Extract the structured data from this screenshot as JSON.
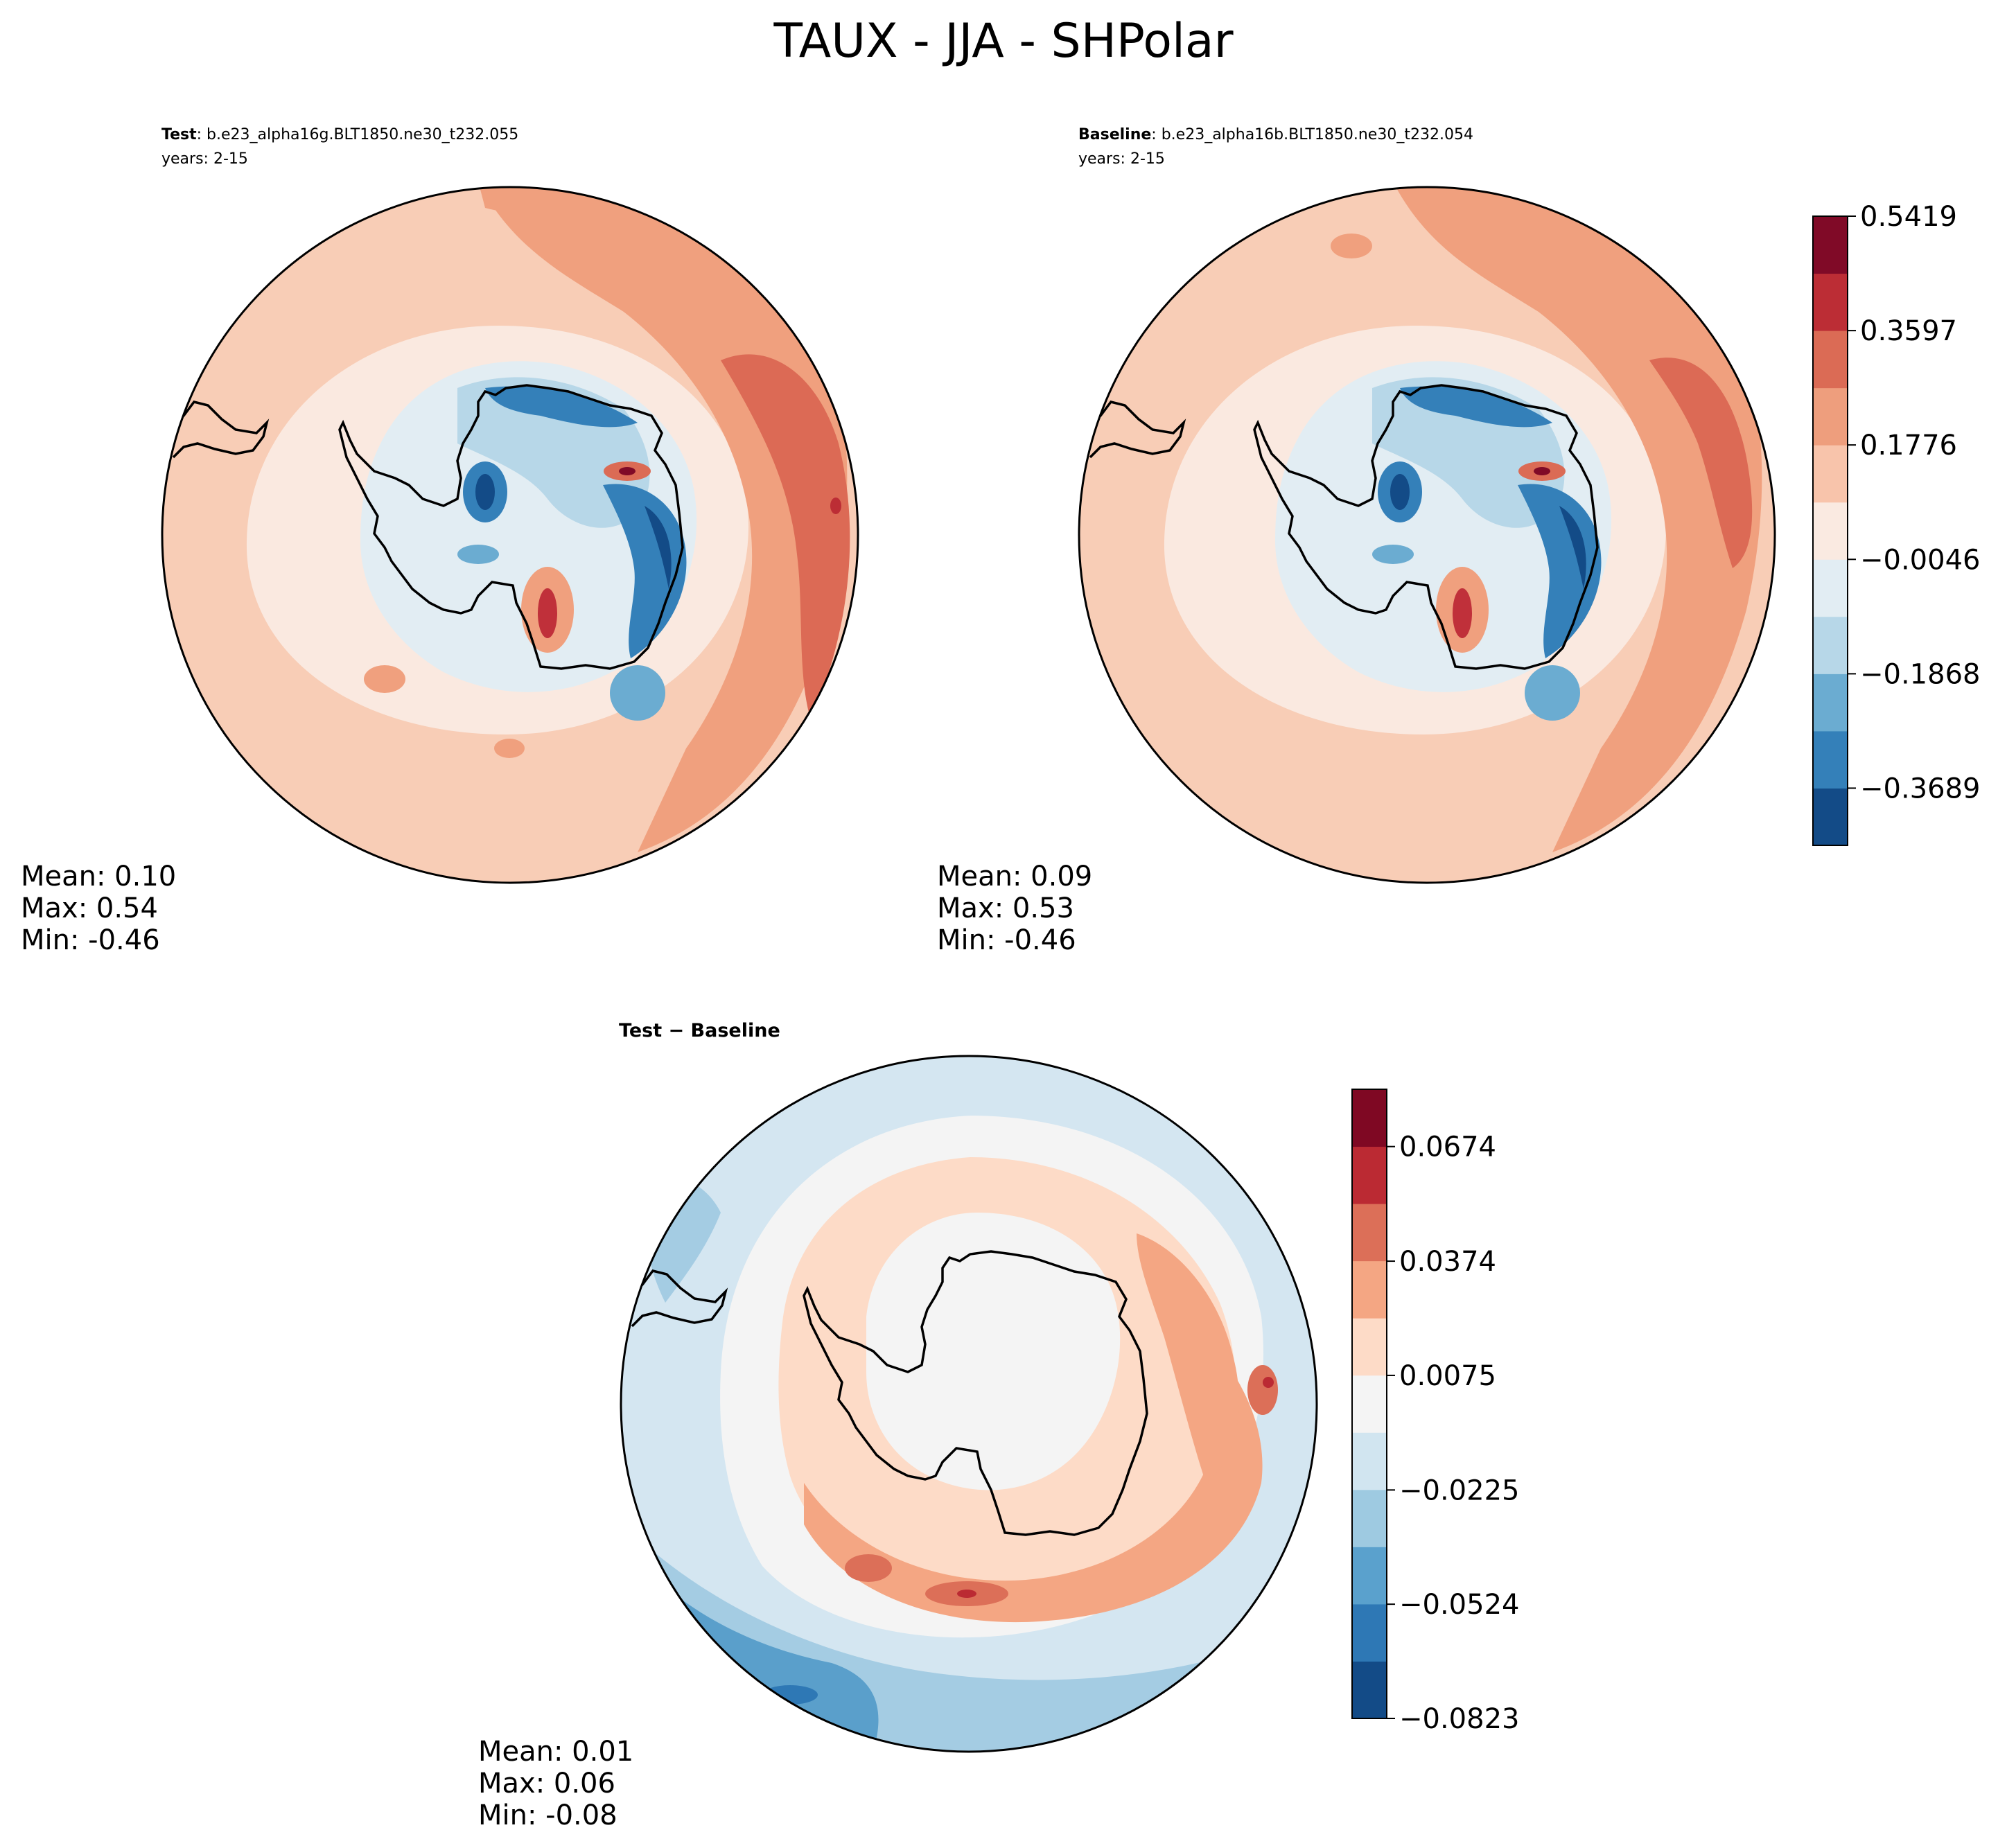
{
  "figure": {
    "title": "TAUX - JJA - SHPolar"
  },
  "chart_data": [
    {
      "type": "heatmap",
      "projection": "south-polar-stereographic",
      "panel": "test",
      "title_bold": "Test",
      "title_rest": ": b.e23_alpha16g.BLT1850.ne30_t232.055",
      "years": "years: 2-15",
      "stats": {
        "mean": "Mean:  0.10",
        "max": "Max:  0.54",
        "min": "Min: -0.46"
      },
      "color_levels": [
        -0.46,
        -0.3689,
        -0.2778,
        -0.1868,
        -0.0957,
        -0.0046,
        0.0865,
        0.1776,
        0.2686,
        0.3597,
        0.4508,
        0.5419
      ]
    },
    {
      "type": "heatmap",
      "projection": "south-polar-stereographic",
      "panel": "baseline",
      "title_bold": "Baseline",
      "title_rest": ": b.e23_alpha16b.BLT1850.ne30_t232.054",
      "years": "years: 2-15",
      "stats": {
        "mean": "Mean:  0.09",
        "max": "Max:  0.53",
        "min": "Min: -0.46"
      },
      "colorbar": {
        "ticks": [
          "0.5419",
          "0.3597",
          "0.1776",
          "−0.0046",
          "−0.1868",
          "−0.3689"
        ],
        "tick_values": [
          0.5419,
          0.3597,
          0.1776,
          -0.0046,
          -0.1868,
          -0.3689
        ],
        "range": [
          -0.46,
          0.5419
        ],
        "colors": [
          "#134b87",
          "#3480b9",
          "#6bacd1",
          "#b7d7e8",
          "#e2edf3",
          "#faeae1",
          "#f8c4ab",
          "#ee9e7d",
          "#db6b55",
          "#bc2d35",
          "#800a27"
        ]
      }
    },
    {
      "type": "heatmap",
      "projection": "south-polar-stereographic",
      "panel": "difference",
      "title": "Test − Baseline",
      "stats": {
        "mean": "Mean:  0.01",
        "max": "Max:  0.06",
        "min": "Min: -0.08"
      },
      "colorbar": {
        "ticks": [
          "0.0674",
          "0.0374",
          "0.0075",
          "−0.0225",
          "−0.0524",
          "−0.0823"
        ],
        "tick_values": [
          0.0674,
          0.0374,
          0.0075,
          -0.0225,
          -0.0524,
          -0.0823
        ],
        "range": [
          -0.0823,
          0.0824
        ],
        "colors": [
          "#134b87",
          "#2e78b5",
          "#5aa1cd",
          "#9ecae1",
          "#d1e5f0",
          "#f4f4f4",
          "#fddbc7",
          "#f4a683",
          "#dc6f58",
          "#bb2a33",
          "#7f0823"
        ]
      }
    }
  ],
  "palette": {
    "fill_light_pos": "#fae9e0",
    "fill_pos": "#f8cdb6",
    "fill_mid_pos": "#f0a07e",
    "fill_strong_pos": "#dc6a55",
    "fill_red": "#c0303a",
    "fill_light_neg": "#deebf3",
    "fill_neg": "#b6d5e8",
    "fill_mid_neg": "#6aaad0",
    "fill_strong_neg": "#3379b6",
    "fill_dark_neg": "#15508c",
    "diff_neutral": "#f4f4f4",
    "diff_light_pos": "#fce0d2",
    "diff_light_neg": "#d4e6f1",
    "diff_mid_neg": "#a4cce3",
    "diff_strong_neg": "#5a9fcb"
  }
}
